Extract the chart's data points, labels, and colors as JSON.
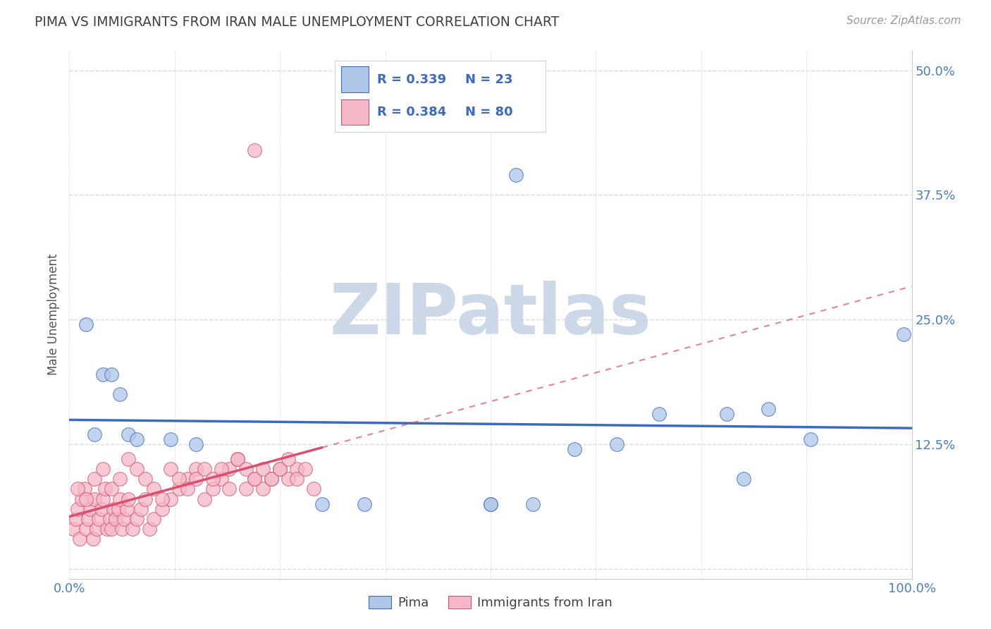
{
  "title": "PIMA VS IMMIGRANTS FROM IRAN MALE UNEMPLOYMENT CORRELATION CHART",
  "source": "Source: ZipAtlas.com",
  "ylabel": "Male Unemployment",
  "xlim": [
    0.0,
    1.0
  ],
  "ylim": [
    -0.01,
    0.52
  ],
  "xticks": [
    0.0,
    0.125,
    0.25,
    0.375,
    0.5,
    0.625,
    0.75,
    0.875,
    1.0
  ],
  "xticklabels": [
    "0.0%",
    "",
    "",
    "",
    "",
    "",
    "",
    "",
    "100.0%"
  ],
  "yticks": [
    0.0,
    0.125,
    0.25,
    0.375,
    0.5
  ],
  "yticklabels": [
    "",
    "12.5%",
    "25.0%",
    "37.5%",
    "50.0%"
  ],
  "legend_r1": "R = 0.339",
  "legend_n1": "N = 23",
  "legend_r2": "R = 0.384",
  "legend_n2": "N = 80",
  "blue_color": "#aec6e8",
  "pink_color": "#f4b8c8",
  "blue_line_color": "#3a6bbf",
  "pink_line_color": "#d94f70",
  "grid_color": "#d0dce8",
  "watermark": "ZIPatlas",
  "watermark_color": "#ccd8e8",
  "blue_scatter_x": [
    0.02,
    0.04,
    0.05,
    0.06,
    0.03,
    0.07,
    0.08,
    0.12,
    0.15,
    0.53,
    0.6,
    0.65,
    0.7,
    0.78,
    0.8,
    0.83,
    0.88,
    0.99,
    0.3,
    0.35,
    0.5,
    0.5,
    0.55
  ],
  "blue_scatter_y": [
    0.245,
    0.195,
    0.195,
    0.175,
    0.135,
    0.135,
    0.13,
    0.13,
    0.125,
    0.395,
    0.12,
    0.125,
    0.155,
    0.155,
    0.09,
    0.16,
    0.13,
    0.235,
    0.065,
    0.065,
    0.065,
    0.065,
    0.065
  ],
  "pink_scatter_x": [
    0.005,
    0.008,
    0.01,
    0.012,
    0.015,
    0.018,
    0.02,
    0.022,
    0.025,
    0.028,
    0.03,
    0.032,
    0.035,
    0.038,
    0.04,
    0.042,
    0.045,
    0.048,
    0.05,
    0.052,
    0.055,
    0.058,
    0.06,
    0.062,
    0.065,
    0.068,
    0.07,
    0.075,
    0.08,
    0.085,
    0.09,
    0.095,
    0.1,
    0.11,
    0.12,
    0.13,
    0.14,
    0.15,
    0.16,
    0.17,
    0.18,
    0.19,
    0.2,
    0.21,
    0.22,
    0.23,
    0.24,
    0.25,
    0.26,
    0.27,
    0.01,
    0.02,
    0.03,
    0.04,
    0.05,
    0.06,
    0.07,
    0.08,
    0.09,
    0.1,
    0.11,
    0.12,
    0.13,
    0.14,
    0.15,
    0.16,
    0.17,
    0.18,
    0.19,
    0.2,
    0.21,
    0.22,
    0.23,
    0.24,
    0.25,
    0.26,
    0.27,
    0.28,
    0.29,
    0.22
  ],
  "pink_scatter_y": [
    0.04,
    0.05,
    0.06,
    0.03,
    0.07,
    0.08,
    0.04,
    0.05,
    0.06,
    0.03,
    0.07,
    0.04,
    0.05,
    0.06,
    0.07,
    0.08,
    0.04,
    0.05,
    0.04,
    0.06,
    0.05,
    0.06,
    0.07,
    0.04,
    0.05,
    0.06,
    0.07,
    0.04,
    0.05,
    0.06,
    0.07,
    0.04,
    0.05,
    0.06,
    0.07,
    0.08,
    0.09,
    0.1,
    0.07,
    0.08,
    0.09,
    0.1,
    0.11,
    0.08,
    0.09,
    0.08,
    0.09,
    0.1,
    0.09,
    0.1,
    0.08,
    0.07,
    0.09,
    0.1,
    0.08,
    0.09,
    0.11,
    0.1,
    0.09,
    0.08,
    0.07,
    0.1,
    0.09,
    0.08,
    0.09,
    0.1,
    0.09,
    0.1,
    0.08,
    0.11,
    0.1,
    0.09,
    0.1,
    0.09,
    0.1,
    0.11,
    0.09,
    0.1,
    0.08,
    0.42
  ]
}
